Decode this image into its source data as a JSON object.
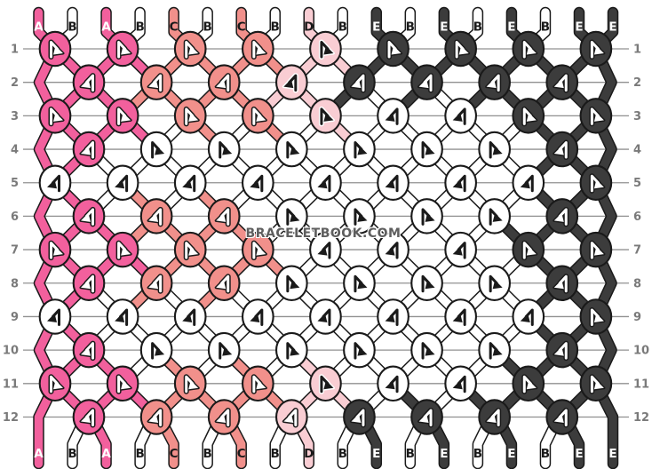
{
  "watermark": {
    "text": "BRACELETBOOK.COM"
  },
  "palette": {
    "A": "#F2609D",
    "B": "#FFFFFF",
    "C": "#F1908B",
    "D": "#F9CDD3",
    "E": "#3C3C3C",
    "outline": "#1A1A1A",
    "gridline": "#909090",
    "row_number": "#7A7A7A",
    "arrow_light": "#FFFFFF",
    "arrow_dark": "#1A1A1A",
    "letter_light": "#FFFFFF",
    "letter_dark": "#1A1A1A",
    "background": "#FFFFFF"
  },
  "strands_top": [
    "A",
    "B",
    "A",
    "B",
    "C",
    "B",
    "C",
    "B",
    "D",
    "B",
    "E",
    "B",
    "E",
    "B",
    "E",
    "B",
    "E",
    "E"
  ],
  "strands_bottom": [
    "A",
    "B",
    "A",
    "B",
    "C",
    "B",
    "C",
    "B",
    "D",
    "B",
    "E",
    "B",
    "E",
    "B",
    "E",
    "B",
    "E",
    "E"
  ],
  "row_numbers": [
    "1",
    "2",
    "3",
    "4",
    "5",
    "6",
    "7",
    "8",
    "9",
    "10",
    "11",
    "12"
  ],
  "rows": [
    {
      "number": "1",
      "knots": [
        "A F",
        "A F",
        "C F",
        "C F",
        "D F",
        "E F",
        "E F",
        "E F",
        "E F"
      ]
    },
    {
      "number": "2",
      "knots": [
        "A B",
        "C B",
        "C B",
        "D B",
        "E B",
        "E B",
        "E B",
        "E B"
      ]
    },
    {
      "number": "3",
      "knots": [
        "A F",
        "A F",
        "C F",
        "C F",
        "D F",
        "B B",
        "B B",
        "E F",
        "E F"
      ]
    },
    {
      "number": "4",
      "knots": [
        "A B",
        "B F",
        "B F",
        "B F",
        "B F",
        "B F",
        "B F",
        "E B"
      ]
    },
    {
      "number": "5",
      "knots": [
        "B B",
        "B B",
        "B B",
        "B B",
        "B B",
        "B B",
        "B B",
        "B B",
        "E F"
      ]
    },
    {
      "number": "6",
      "knots": [
        "A B",
        "C B",
        "C B",
        "B F",
        "B F",
        "B F",
        "B F",
        "E B"
      ]
    },
    {
      "number": "7",
      "knots": [
        "A F",
        "A F",
        "C F",
        "C F",
        "B B",
        "B B",
        "B B",
        "E F",
        "E F"
      ]
    },
    {
      "number": "8",
      "knots": [
        "A B",
        "C B",
        "C B",
        "B F",
        "B F",
        "B F",
        "B F",
        "E B"
      ]
    },
    {
      "number": "9",
      "knots": [
        "B B",
        "B B",
        "B B",
        "B B",
        "B B",
        "B B",
        "B B",
        "B B",
        "E F"
      ]
    },
    {
      "number": "10",
      "knots": [
        "A B",
        "B F",
        "B F",
        "B F",
        "B F",
        "B F",
        "B F",
        "E B"
      ]
    },
    {
      "number": "11",
      "knots": [
        "A F",
        "A F",
        "C F",
        "C F",
        "D F",
        "B B",
        "B B",
        "E F",
        "E F"
      ]
    },
    {
      "number": "12",
      "knots": [
        "A B",
        "C B",
        "C B",
        "D B",
        "E B",
        "E B",
        "E B",
        "E B"
      ]
    }
  ],
  "arrow_overrides": {
    "12-4": "light"
  }
}
